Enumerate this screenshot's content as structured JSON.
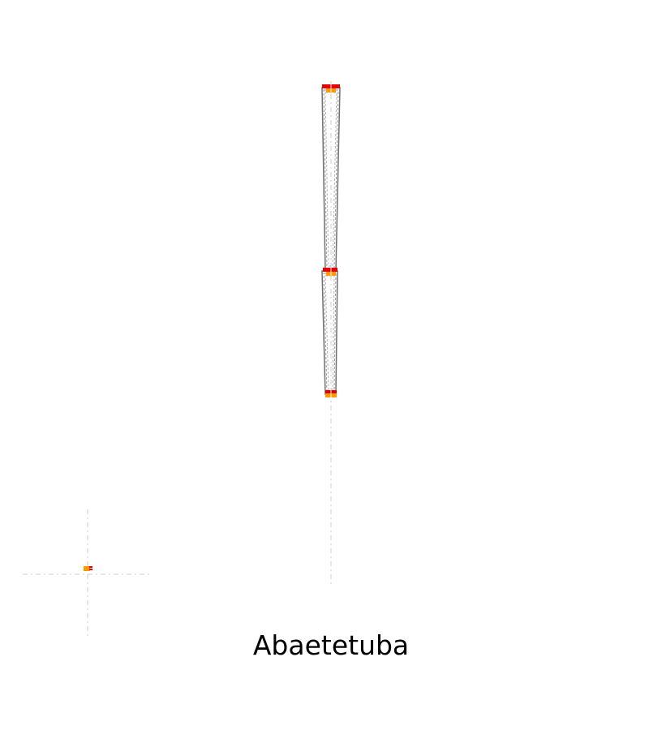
{
  "title": "Abaetetuba",
  "colors": {
    "background": "#ffffff",
    "guide": "#cccccc",
    "outline": "#707070",
    "marker_red": "#e60000",
    "marker_orange": "#ff9900",
    "text": "#000000"
  }
}
